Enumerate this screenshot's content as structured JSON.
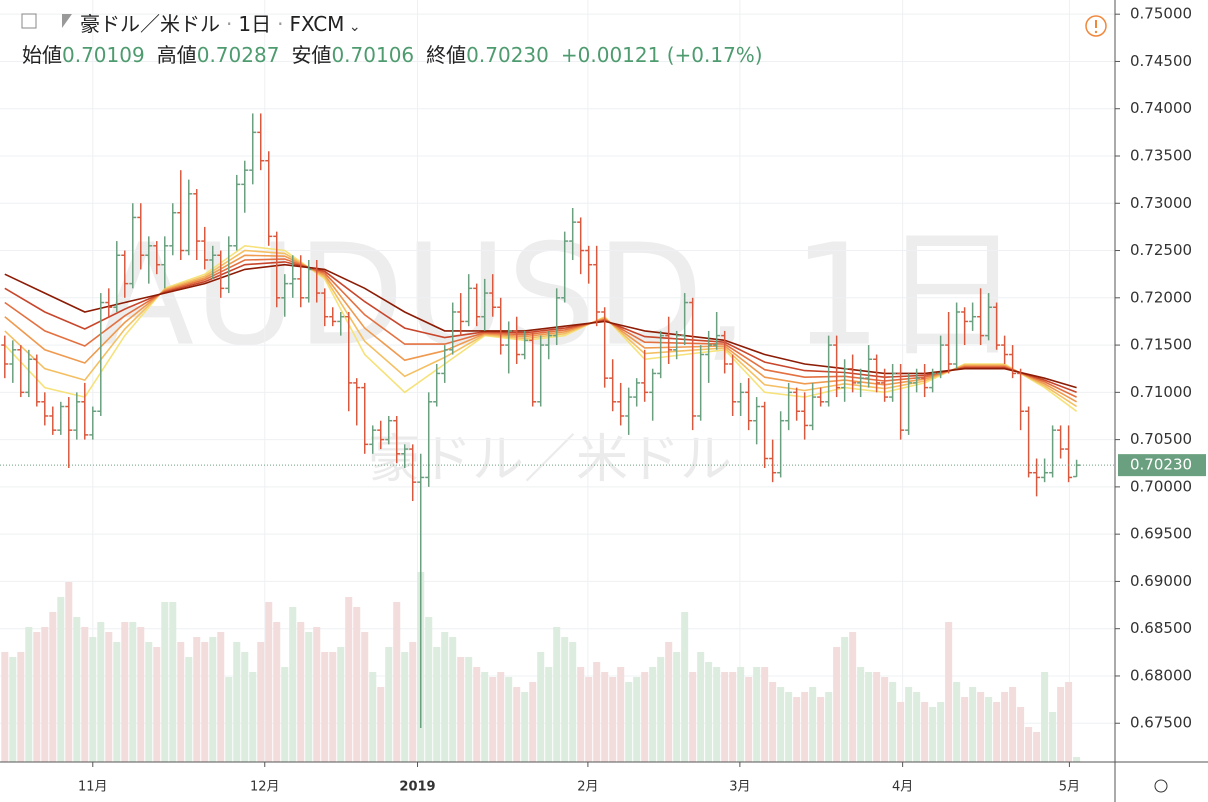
{
  "chart_data": {
    "type": "ohlc",
    "title": "豪ドル／米ドル",
    "interval": "1日",
    "source": "FXCM",
    "watermark": "AUDUSD, 1日",
    "watermark_subtitle": "豪ドル／米ドル",
    "legend": [
      {
        "label": "始値",
        "value": "0.70109"
      },
      {
        "label": "高値",
        "value": "0.70287"
      },
      {
        "label": "安値",
        "value": "0.70106"
      },
      {
        "label": "終値",
        "value": "0.70230"
      }
    ],
    "change": "+0.00121 (+0.17%)",
    "up_color": "#6aa07f",
    "down_color": "#d9593f",
    "volume_up_color": "#dcecdf",
    "volume_down_color": "#f3dcdc",
    "ylim": [
      0.6709,
      0.7515
    ],
    "xlim": [
      -0.6,
      138.8
    ],
    "yticks": [
      {
        "value": 0.675,
        "label": "0.67500"
      },
      {
        "value": 0.68,
        "label": "0.68000"
      },
      {
        "value": 0.685,
        "label": "0.68500"
      },
      {
        "value": 0.69,
        "label": "0.69000"
      },
      {
        "value": 0.695,
        "label": "0.69500"
      },
      {
        "value": 0.7,
        "label": "0.70000"
      },
      {
        "value": 0.705,
        "label": "0.70500"
      },
      {
        "value": 0.71,
        "label": "0.71000"
      },
      {
        "value": 0.715,
        "label": "0.71500"
      },
      {
        "value": 0.72,
        "label": "0.72000"
      },
      {
        "value": 0.725,
        "label": "0.72500"
      },
      {
        "value": 0.73,
        "label": "0.73000"
      },
      {
        "value": 0.735,
        "label": "0.73500"
      },
      {
        "value": 0.74,
        "label": "0.74000"
      },
      {
        "value": 0.745,
        "label": "0.74500"
      },
      {
        "value": 0.75,
        "label": "0.75000"
      }
    ],
    "xticks": [
      {
        "value": 11,
        "label": "11月"
      },
      {
        "value": 32.5,
        "label": "12月"
      },
      {
        "value": 51.6,
        "label": "2019"
      },
      {
        "value": 72.9,
        "label": "2月"
      },
      {
        "value": 91.9,
        "label": "3月"
      },
      {
        "value": 112.25,
        "label": "4月"
      },
      {
        "value": 133.1,
        "label": "5月"
      }
    ],
    "last_price": {
      "value": 0.7023,
      "label": "0.70230"
    },
    "bars": [
      [
        0.715,
        0.716,
        0.7115,
        0.713
      ],
      [
        0.713,
        0.7155,
        0.711,
        0.7145
      ],
      [
        0.7145,
        0.715,
        0.7095,
        0.71
      ],
      [
        0.71,
        0.7145,
        0.7095,
        0.7135
      ],
      [
        0.7135,
        0.714,
        0.7085,
        0.709
      ],
      [
        0.709,
        0.71,
        0.7065,
        0.7075
      ],
      [
        0.7075,
        0.7085,
        0.7055,
        0.706
      ],
      [
        0.706,
        0.709,
        0.7055,
        0.7085
      ],
      [
        0.7085,
        0.7095,
        0.702,
        0.706
      ],
      [
        0.706,
        0.71,
        0.705,
        0.709
      ],
      [
        0.709,
        0.711,
        0.705,
        0.7055
      ],
      [
        0.7055,
        0.7085,
        0.705,
        0.708
      ],
      [
        0.708,
        0.7205,
        0.7075,
        0.7195
      ],
      [
        0.7195,
        0.721,
        0.718,
        0.719
      ],
      [
        0.719,
        0.726,
        0.7185,
        0.7245
      ],
      [
        0.7245,
        0.725,
        0.72,
        0.7215
      ],
      [
        0.7215,
        0.73,
        0.721,
        0.7285
      ],
      [
        0.7285,
        0.73,
        0.723,
        0.7245
      ],
      [
        0.7245,
        0.7265,
        0.7215,
        0.7255
      ],
      [
        0.7255,
        0.726,
        0.7225,
        0.7235
      ],
      [
        0.7235,
        0.7265,
        0.721,
        0.7255
      ],
      [
        0.7255,
        0.73,
        0.7245,
        0.729
      ],
      [
        0.729,
        0.7335,
        0.724,
        0.725
      ],
      [
        0.725,
        0.7325,
        0.7245,
        0.731
      ],
      [
        0.731,
        0.7315,
        0.724,
        0.726
      ],
      [
        0.726,
        0.7275,
        0.723,
        0.724
      ],
      [
        0.724,
        0.7255,
        0.722,
        0.7245
      ],
      [
        0.7245,
        0.725,
        0.72,
        0.721
      ],
      [
        0.721,
        0.7265,
        0.7205,
        0.7255
      ],
      [
        0.7255,
        0.733,
        0.725,
        0.732
      ],
      [
        0.732,
        0.7345,
        0.729,
        0.7335
      ],
      [
        0.7335,
        0.7395,
        0.732,
        0.7375
      ],
      [
        0.7375,
        0.7395,
        0.7335,
        0.7345
      ],
      [
        0.7345,
        0.7355,
        0.7255,
        0.7265
      ],
      [
        0.7265,
        0.727,
        0.719,
        0.72
      ],
      [
        0.72,
        0.7225,
        0.718,
        0.7215
      ],
      [
        0.7215,
        0.7245,
        0.72,
        0.722
      ],
      [
        0.722,
        0.7245,
        0.719,
        0.72
      ],
      [
        0.72,
        0.724,
        0.7195,
        0.723
      ],
      [
        0.723,
        0.724,
        0.7195,
        0.7205
      ],
      [
        0.7205,
        0.721,
        0.717,
        0.718
      ],
      [
        0.718,
        0.719,
        0.717,
        0.7175
      ],
      [
        0.7175,
        0.7185,
        0.716,
        0.718
      ],
      [
        0.718,
        0.7185,
        0.708,
        0.711
      ],
      [
        0.711,
        0.7115,
        0.7065,
        0.7105
      ],
      [
        0.7105,
        0.711,
        0.7035,
        0.7045
      ],
      [
        0.7045,
        0.7065,
        0.7035,
        0.706
      ],
      [
        0.706,
        0.707,
        0.704,
        0.705
      ],
      [
        0.705,
        0.7075,
        0.7045,
        0.707
      ],
      [
        0.707,
        0.7075,
        0.7025,
        0.7035
      ],
      [
        0.7035,
        0.7045,
        0.702,
        0.704
      ],
      [
        0.704,
        0.7045,
        0.6985,
        0.7005
      ],
      [
        0.7005,
        0.7035,
        0.6745,
        0.701
      ],
      [
        0.701,
        0.71,
        0.7,
        0.709
      ],
      [
        0.709,
        0.713,
        0.7085,
        0.712
      ],
      [
        0.712,
        0.715,
        0.711,
        0.7145
      ],
      [
        0.7145,
        0.7195,
        0.714,
        0.7185
      ],
      [
        0.7185,
        0.7205,
        0.716,
        0.7175
      ],
      [
        0.7175,
        0.7225,
        0.717,
        0.721
      ],
      [
        0.721,
        0.7215,
        0.717,
        0.718
      ],
      [
        0.718,
        0.722,
        0.7165,
        0.7205
      ],
      [
        0.7205,
        0.7225,
        0.718,
        0.719
      ],
      [
        0.719,
        0.72,
        0.714,
        0.715
      ],
      [
        0.715,
        0.7175,
        0.712,
        0.7165
      ],
      [
        0.7165,
        0.718,
        0.713,
        0.714
      ],
      [
        0.714,
        0.7165,
        0.7135,
        0.7155
      ],
      [
        0.7155,
        0.7165,
        0.7085,
        0.709
      ],
      [
        0.709,
        0.716,
        0.7085,
        0.715
      ],
      [
        0.715,
        0.7165,
        0.7135,
        0.716
      ],
      [
        0.716,
        0.721,
        0.715,
        0.72
      ],
      [
        0.72,
        0.727,
        0.7195,
        0.726
      ],
      [
        0.726,
        0.7295,
        0.724,
        0.728
      ],
      [
        0.728,
        0.7285,
        0.7225,
        0.725
      ],
      [
        0.725,
        0.7255,
        0.7215,
        0.7235
      ],
      [
        0.7235,
        0.7255,
        0.717,
        0.7185
      ],
      [
        0.7185,
        0.719,
        0.7105,
        0.7115
      ],
      [
        0.7115,
        0.7135,
        0.708,
        0.709
      ],
      [
        0.709,
        0.711,
        0.7065,
        0.7075
      ],
      [
        0.7075,
        0.7105,
        0.7055,
        0.7095
      ],
      [
        0.7095,
        0.7115,
        0.7085,
        0.711
      ],
      [
        0.711,
        0.7145,
        0.709,
        0.71
      ],
      [
        0.71,
        0.7125,
        0.707,
        0.712
      ],
      [
        0.712,
        0.7165,
        0.7115,
        0.716
      ],
      [
        0.716,
        0.718,
        0.713,
        0.7145
      ],
      [
        0.7145,
        0.7165,
        0.7135,
        0.716
      ],
      [
        0.716,
        0.7205,
        0.715,
        0.7195
      ],
      [
        0.7195,
        0.72,
        0.706,
        0.7075
      ],
      [
        0.7075,
        0.715,
        0.707,
        0.714
      ],
      [
        0.714,
        0.7165,
        0.711,
        0.715
      ],
      [
        0.715,
        0.7185,
        0.7145,
        0.716
      ],
      [
        0.716,
        0.7165,
        0.712,
        0.713
      ],
      [
        0.713,
        0.714,
        0.7075,
        0.709
      ],
      [
        0.709,
        0.711,
        0.7075,
        0.71
      ],
      [
        0.71,
        0.7115,
        0.706,
        0.707
      ],
      [
        0.707,
        0.7095,
        0.7045,
        0.7085
      ],
      [
        0.7085,
        0.709,
        0.702,
        0.703
      ],
      [
        0.703,
        0.705,
        0.7005,
        0.7015
      ],
      [
        0.7015,
        0.708,
        0.701,
        0.707
      ],
      [
        0.707,
        0.711,
        0.706,
        0.71
      ],
      [
        0.71,
        0.7105,
        0.707,
        0.708
      ],
      [
        0.708,
        0.71,
        0.705,
        0.7065
      ],
      [
        0.7065,
        0.711,
        0.706,
        0.7095
      ],
      [
        0.7095,
        0.7105,
        0.7085,
        0.709
      ],
      [
        0.709,
        0.716,
        0.7085,
        0.715
      ],
      [
        0.715,
        0.716,
        0.7095,
        0.7105
      ],
      [
        0.7105,
        0.7135,
        0.709,
        0.7125
      ],
      [
        0.7125,
        0.714,
        0.71,
        0.711
      ],
      [
        0.711,
        0.7125,
        0.7095,
        0.7115
      ],
      [
        0.7115,
        0.715,
        0.7105,
        0.7135
      ],
      [
        0.7135,
        0.714,
        0.71,
        0.711
      ],
      [
        0.711,
        0.7125,
        0.709,
        0.7095
      ],
      [
        0.7095,
        0.713,
        0.709,
        0.712
      ],
      [
        0.712,
        0.713,
        0.705,
        0.706
      ],
      [
        0.706,
        0.712,
        0.7055,
        0.711
      ],
      [
        0.711,
        0.7125,
        0.71,
        0.7115
      ],
      [
        0.7115,
        0.713,
        0.7095,
        0.7105
      ],
      [
        0.7105,
        0.7125,
        0.71,
        0.712
      ],
      [
        0.712,
        0.716,
        0.7115,
        0.715
      ],
      [
        0.715,
        0.7185,
        0.712,
        0.713
      ],
      [
        0.713,
        0.7195,
        0.7125,
        0.7185
      ],
      [
        0.7185,
        0.719,
        0.715,
        0.7175
      ],
      [
        0.7175,
        0.7195,
        0.7165,
        0.718
      ],
      [
        0.718,
        0.721,
        0.715,
        0.716
      ],
      [
        0.716,
        0.7205,
        0.7155,
        0.719
      ],
      [
        0.719,
        0.7195,
        0.7145,
        0.715
      ],
      [
        0.715,
        0.716,
        0.713,
        0.714
      ],
      [
        0.714,
        0.715,
        0.7115,
        0.712
      ],
      [
        0.712,
        0.7125,
        0.706,
        0.708
      ],
      [
        0.708,
        0.7085,
        0.701,
        0.7015
      ],
      [
        0.7015,
        0.703,
        0.699,
        0.701
      ],
      [
        0.701,
        0.703,
        0.7005,
        0.7015
      ],
      [
        0.7015,
        0.7065,
        0.701,
        0.706
      ],
      [
        0.706,
        0.7065,
        0.703,
        0.704
      ],
      [
        0.704,
        0.7065,
        0.7005,
        0.701
      ],
      [
        0.70109,
        0.70287,
        0.70106,
        0.7023
      ]
    ],
    "volume": [
      110,
      105,
      110,
      135,
      130,
      135,
      150,
      165,
      180,
      145,
      135,
      125,
      140,
      130,
      120,
      140,
      140,
      135,
      120,
      115,
      160,
      160,
      120,
      105,
      125,
      120,
      125,
      130,
      85,
      120,
      110,
      90,
      120,
      160,
      140,
      95,
      155,
      140,
      130,
      135,
      110,
      110,
      115,
      165,
      155,
      130,
      90,
      75,
      115,
      160,
      110,
      120,
      190,
      145,
      115,
      130,
      125,
      105,
      105,
      95,
      90,
      85,
      90,
      85,
      75,
      70,
      80,
      110,
      95,
      135,
      125,
      120,
      95,
      85,
      100,
      90,
      85,
      95,
      80,
      85,
      90,
      95,
      105,
      120,
      110,
      150,
      90,
      110,
      100,
      95,
      90,
      90,
      95,
      85,
      95,
      95,
      80,
      75,
      70,
      65,
      70,
      75,
      65,
      70,
      115,
      125,
      130,
      95,
      90,
      90,
      85,
      80,
      60,
      75,
      70,
      60,
      55,
      60,
      140,
      80,
      65,
      75,
      70,
      65,
      60,
      70,
      75,
      55,
      35,
      30,
      90,
      50,
      75,
      80,
      5
    ],
    "ma_x": [
      0,
      5,
      10,
      15,
      20,
      25,
      30,
      35,
      40,
      45,
      50,
      55,
      60,
      65,
      70,
      75,
      80,
      85,
      90,
      95,
      100,
      105,
      110,
      115,
      120,
      125,
      130,
      134
    ],
    "ma": [
      {
        "color": "#f6e27a",
        "values": [
          0.715,
          0.7105,
          0.7095,
          0.716,
          0.721,
          0.7225,
          0.7255,
          0.725,
          0.722,
          0.714,
          0.71,
          0.713,
          0.716,
          0.7155,
          0.716,
          0.718,
          0.7135,
          0.714,
          0.7145,
          0.71,
          0.7095,
          0.7105,
          0.71,
          0.711,
          0.713,
          0.713,
          0.7105,
          0.708
        ]
      },
      {
        "color": "#f4bf62",
        "values": [
          0.7165,
          0.7125,
          0.7113,
          0.7167,
          0.7209,
          0.7223,
          0.725,
          0.7247,
          0.7222,
          0.7154,
          0.7117,
          0.7137,
          0.7161,
          0.7157,
          0.7162,
          0.7179,
          0.7141,
          0.7144,
          0.7147,
          0.7108,
          0.7102,
          0.7109,
          0.7104,
          0.7112,
          0.7129,
          0.7129,
          0.7107,
          0.7085
        ]
      },
      {
        "color": "#ef9a4f",
        "values": [
          0.718,
          0.7145,
          0.7131,
          0.7174,
          0.7208,
          0.7221,
          0.7245,
          0.7244,
          0.7224,
          0.7168,
          0.7134,
          0.7144,
          0.7162,
          0.7159,
          0.7164,
          0.7178,
          0.7147,
          0.7148,
          0.7149,
          0.7116,
          0.7109,
          0.7113,
          0.7108,
          0.7114,
          0.7128,
          0.7128,
          0.7109,
          0.709
        ]
      },
      {
        "color": "#e37040",
        "values": [
          0.7195,
          0.7165,
          0.7149,
          0.7181,
          0.7207,
          0.7219,
          0.724,
          0.7241,
          0.7226,
          0.7182,
          0.7151,
          0.7151,
          0.7163,
          0.7161,
          0.7166,
          0.7177,
          0.7153,
          0.7152,
          0.7151,
          0.7124,
          0.7116,
          0.7117,
          0.7112,
          0.7116,
          0.7127,
          0.7127,
          0.7111,
          0.7095
        ]
      },
      {
        "color": "#c8462b",
        "values": [
          0.721,
          0.7185,
          0.7167,
          0.7188,
          0.7206,
          0.7217,
          0.7235,
          0.7238,
          0.7228,
          0.7196,
          0.7168,
          0.7158,
          0.7164,
          0.7163,
          0.7168,
          0.7176,
          0.7159,
          0.7156,
          0.7153,
          0.7132,
          0.7123,
          0.7121,
          0.7116,
          0.7118,
          0.7126,
          0.7126,
          0.7113,
          0.71
        ]
      },
      {
        "color": "#8c1c05",
        "values": [
          0.7225,
          0.7205,
          0.7185,
          0.7195,
          0.7205,
          0.7215,
          0.723,
          0.7235,
          0.723,
          0.721,
          0.7185,
          0.7165,
          0.7165,
          0.7165,
          0.717,
          0.7175,
          0.7165,
          0.716,
          0.7155,
          0.714,
          0.713,
          0.7125,
          0.712,
          0.712,
          0.7125,
          0.7125,
          0.7115,
          0.7105
        ]
      }
    ]
  }
}
